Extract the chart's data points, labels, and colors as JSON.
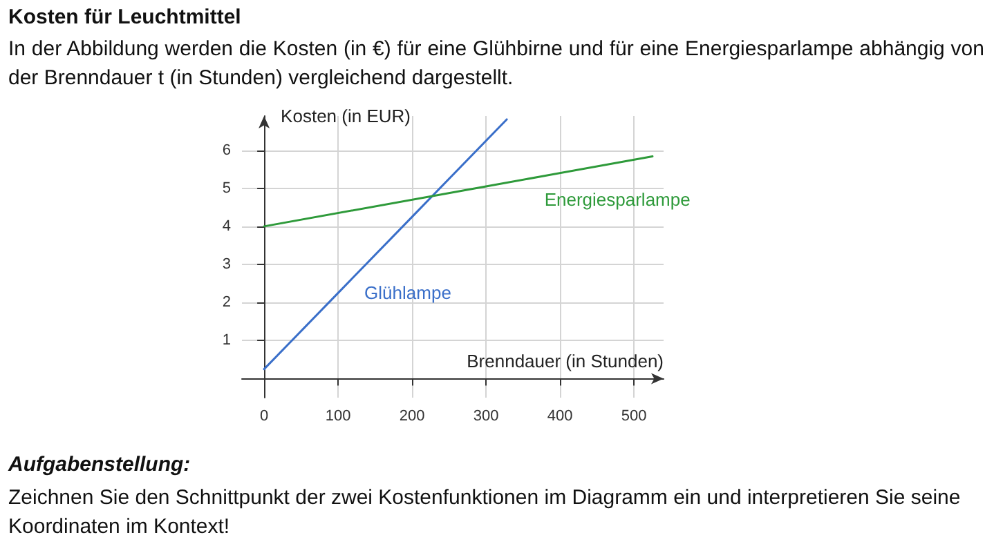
{
  "chart_data": {
    "type": "line",
    "title": "Kosten für Leuchtmittel",
    "subtitle": "In der Abbildung werden die Kosten (in €) für eine Glühbirne und für eine Energiesparlampe abhängig von der Brenndauer t (in Stunden) vergleichend dargestellt.",
    "xlabel": "Brenndauer (in Stunden)",
    "ylabel": "Kosten (in EUR)",
    "series": [
      {
        "name": "Glühlampe",
        "color": "#3a6fc9",
        "x": [
          0,
          100,
          200,
          328
        ],
        "values": [
          0.25,
          2.25,
          4.25,
          6.81
        ]
      },
      {
        "name": "Energiesparlampe",
        "color": "#2e9a3a",
        "x": [
          0,
          300,
          525
        ],
        "values": [
          4,
          5.05,
          5.84
        ]
      }
    ],
    "xlim": [
      -30,
      540
    ],
    "xticks": [
      0,
      100,
      200,
      300,
      400,
      500
    ],
    "ylim": [
      -0.5,
      6.9
    ],
    "yticks": [
      1,
      2,
      3,
      4,
      5,
      6
    ],
    "grid": true,
    "legend": false,
    "marker": "none",
    "line_style": "solid",
    "annotations": [
      "Aufgabenstellung:",
      "Zeichnen Sie den Schnittpunkt der zwei Kostenfunktionen im Diagramm ein und interpretieren Sie seine Koordinaten im Kontext!"
    ]
  }
}
